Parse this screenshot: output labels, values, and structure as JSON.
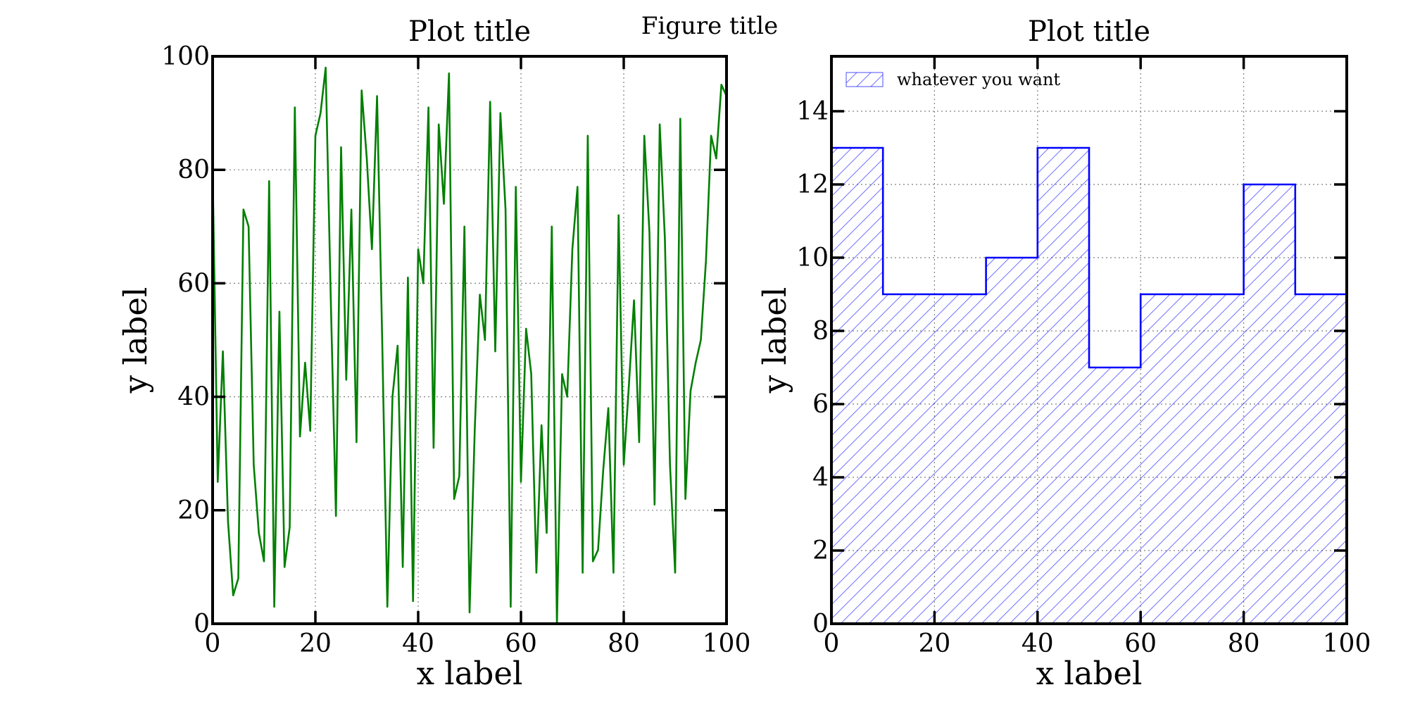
{
  "figure": {
    "title": "Figure title"
  },
  "chart_data": [
    {
      "type": "line",
      "title": "Plot title",
      "xlabel": "x label",
      "ylabel": "y label",
      "xlim": [
        0,
        100
      ],
      "ylim": [
        0,
        100
      ],
      "xticks": [
        "0",
        "20",
        "40",
        "60",
        "80",
        "100"
      ],
      "yticks": [
        "0",
        "20",
        "40",
        "60",
        "80",
        "100"
      ],
      "grid": true,
      "color": "#007f00",
      "series": [
        {
          "x": [
            0,
            1,
            2,
            3,
            4,
            5,
            6,
            7,
            8,
            9,
            10,
            11,
            12,
            13,
            14,
            15,
            16,
            17,
            18,
            19,
            20,
            21,
            22,
            23,
            24,
            25,
            26,
            27,
            28,
            29,
            30,
            31,
            32,
            33,
            34,
            35,
            36,
            37,
            38,
            39,
            40,
            41,
            42,
            43,
            44,
            45,
            46,
            47,
            48,
            49,
            50,
            51,
            52,
            53,
            54,
            55,
            56,
            57,
            58,
            59,
            60,
            61,
            62,
            63,
            64,
            65,
            66,
            67,
            68,
            69,
            70,
            71,
            72,
            73,
            74,
            75,
            76,
            77,
            78,
            79,
            80,
            81,
            82,
            83,
            84,
            85,
            86,
            87,
            88,
            89,
            90,
            91,
            92,
            93,
            94,
            95,
            96,
            97,
            98,
            99,
            100
          ],
          "values": [
            80,
            25,
            48,
            18,
            5,
            8,
            73,
            70,
            28,
            16,
            11,
            78,
            3,
            55,
            10,
            17,
            91,
            33,
            46,
            34,
            86,
            90,
            98,
            57,
            19,
            84,
            43,
            73,
            32,
            94,
            82,
            66,
            93,
            50,
            3,
            40,
            49,
            10,
            61,
            4,
            66,
            60,
            91,
            31,
            88,
            74,
            97,
            22,
            26,
            70,
            2,
            34,
            58,
            50,
            92,
            48,
            90,
            73,
            3,
            77,
            25,
            52,
            44,
            9,
            35,
            16,
            70,
            0,
            44,
            40,
            66,
            77,
            9,
            86,
            11,
            13,
            27,
            38,
            9,
            72,
            28,
            42,
            57,
            32,
            86,
            69,
            21,
            88,
            68,
            28,
            9,
            89,
            22,
            41,
            46,
            50,
            64,
            86,
            82,
            95,
            93
          ]
        }
      ]
    },
    {
      "type": "bar",
      "title": "Plot title",
      "xlabel": "x label",
      "ylabel": "y label",
      "xlim": [
        0,
        100
      ],
      "ylim": [
        0,
        15.5
      ],
      "xticks": [
        "0",
        "20",
        "40",
        "60",
        "80",
        "100"
      ],
      "yticks": [
        "0",
        "2",
        "4",
        "6",
        "8",
        "10",
        "12",
        "14"
      ],
      "grid": true,
      "histtype": "step-filled-hatched",
      "color": "#0000ff",
      "bin_edges": [
        0,
        10,
        20,
        30,
        40,
        50,
        60,
        70,
        80,
        90,
        100
      ],
      "values": [
        13,
        9,
        9,
        10,
        13,
        7,
        9,
        9,
        12,
        9
      ],
      "legend": {
        "placement": "top-left",
        "entries": [
          "whatever you want"
        ]
      }
    }
  ]
}
